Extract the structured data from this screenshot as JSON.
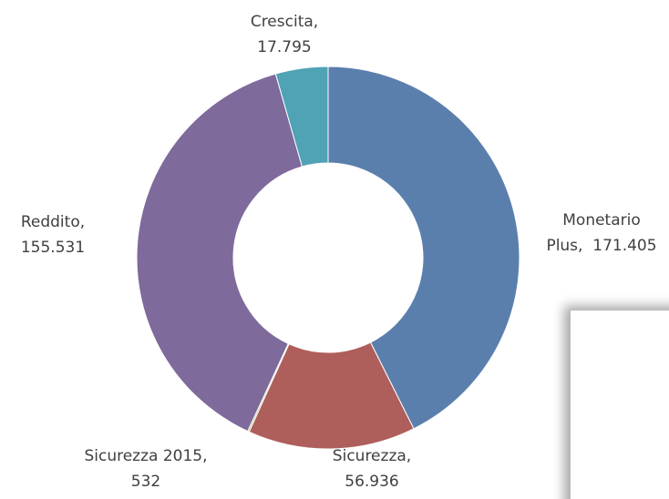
{
  "chart_data": {
    "type": "donut",
    "values": [
      171405,
      56936,
      532,
      155531,
      17795
    ],
    "value_labels": [
      "Monetario\nPlus,  171.405",
      "Sicurezza,\n56.936",
      "Sicurezza 2015,\n532",
      "Reddito,\n155.531",
      "Crescita,\n17.795"
    ],
    "colors": [
      "#5b7fad",
      "#ae5f5b",
      "#98b65e",
      "#7e6a9b",
      "#4fa3b5"
    ]
  }
}
